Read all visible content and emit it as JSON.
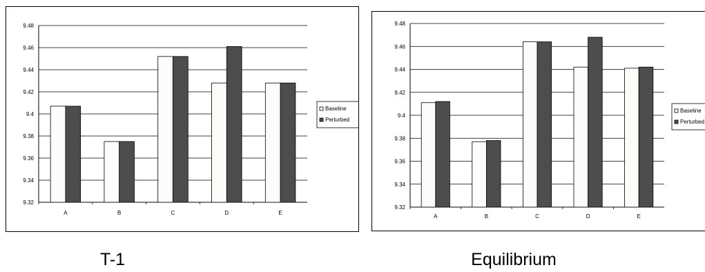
{
  "chart_data": [
    {
      "type": "bar",
      "title": "",
      "caption": "T-1",
      "xlabel": "",
      "ylabel": "",
      "categories": [
        "A",
        "B",
        "C",
        "D",
        "E"
      ],
      "series": [
        {
          "name": "Baseline",
          "values": [
            9.407,
            9.375,
            9.452,
            9.428,
            9.428
          ],
          "color": "#fcfcfa"
        },
        {
          "name": "Perturbed",
          "values": [
            9.407,
            9.375,
            9.452,
            9.461,
            9.428
          ],
          "color": "#4d4d4d"
        }
      ],
      "ylim": [
        9.32,
        9.48
      ],
      "yticks": [
        "9.32",
        "9.34",
        "9.36",
        "9.38",
        "9.4",
        "9.42",
        "9.44",
        "9.46",
        "9.48"
      ],
      "grid": true,
      "legend": "right"
    },
    {
      "type": "bar",
      "title": "",
      "caption": "Equilibrium",
      "xlabel": "",
      "ylabel": "",
      "categories": [
        "A",
        "B",
        "C",
        "D",
        "E"
      ],
      "series": [
        {
          "name": "Baseline",
          "values": [
            9.411,
            9.377,
            9.464,
            9.442,
            9.441
          ],
          "color": "#fcfcfa"
        },
        {
          "name": "Perturbed",
          "values": [
            9.412,
            9.378,
            9.464,
            9.468,
            9.442
          ],
          "color": "#4d4d4d"
        }
      ],
      "ylim": [
        9.32,
        9.48
      ],
      "yticks": [
        "9.32",
        "9.34",
        "9.36",
        "9.38",
        "9.4",
        "9.42",
        "9.44",
        "9.46",
        "9.48"
      ],
      "grid": true,
      "legend": "right"
    }
  ]
}
